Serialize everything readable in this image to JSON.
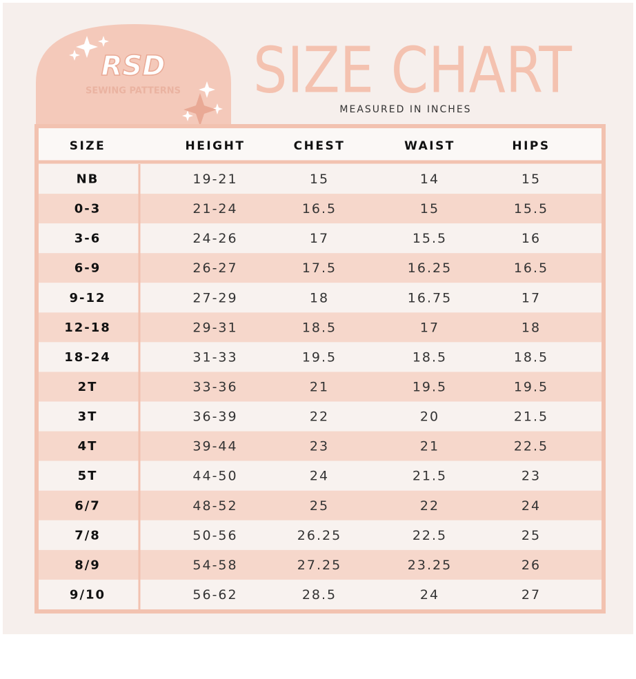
{
  "logo": {
    "title": "RSD",
    "subtitle": "SEWING PATTERNS"
  },
  "header": {
    "title": "SIZE CHART",
    "subtitle": "MEASURED IN INCHES"
  },
  "table": {
    "columns": [
      "SIZE",
      "HEIGHT",
      "CHEST",
      "WAIST",
      "HIPS"
    ],
    "rows": [
      [
        "NB",
        "19-21",
        "15",
        "14",
        "15"
      ],
      [
        "0-3",
        "21-24",
        "16.5",
        "15",
        "15.5"
      ],
      [
        "3-6",
        "24-26",
        "17",
        "15.5",
        "16"
      ],
      [
        "6-9",
        "26-27",
        "17.5",
        "16.25",
        "16.5"
      ],
      [
        "9-12",
        "27-29",
        "18",
        "16.75",
        "17"
      ],
      [
        "12-18",
        "29-31",
        "18.5",
        "17",
        "18"
      ],
      [
        "18-24",
        "31-33",
        "19.5",
        "18.5",
        "18.5"
      ],
      [
        "2T",
        "33-36",
        "21",
        "19.5",
        "19.5"
      ],
      [
        "3T",
        "36-39",
        "22",
        "20",
        "21.5"
      ],
      [
        "4T",
        "39-44",
        "23",
        "21",
        "22.5"
      ],
      [
        "5T",
        "44-50",
        "24",
        "21.5",
        "23"
      ],
      [
        "6/7",
        "48-52",
        "25",
        "22",
        "24"
      ],
      [
        "7/8",
        "50-56",
        "26.25",
        "22.5",
        "25"
      ],
      [
        "8/9",
        "54-58",
        "27.25",
        "23.25",
        "26"
      ],
      [
        "9/10",
        "56-62",
        "28.5",
        "24",
        "27"
      ]
    ]
  }
}
